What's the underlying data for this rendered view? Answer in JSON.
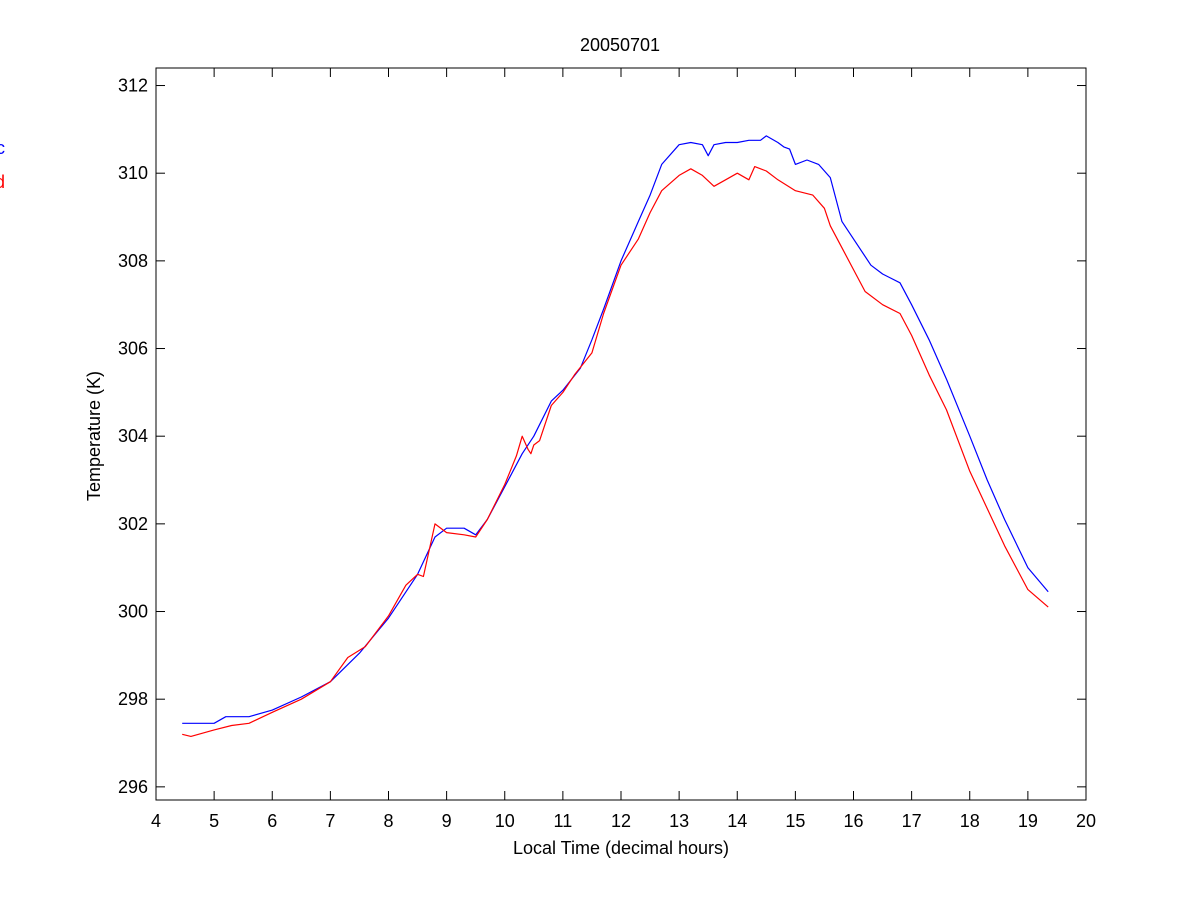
{
  "chart_data": {
    "type": "line",
    "title": "20050701",
    "xlabel": "Local Time (decimal hours)",
    "ylabel": "Temperature (K)",
    "xlim": [
      4,
      20
    ],
    "ylim": [
      295.7,
      312.4
    ],
    "xticks": [
      4,
      5,
      6,
      7,
      8,
      9,
      10,
      11,
      12,
      13,
      14,
      15,
      16,
      17,
      18,
      19,
      20
    ],
    "yticks": [
      296,
      298,
      300,
      302,
      304,
      306,
      308,
      310,
      312
    ],
    "grid": false,
    "legend_position": "left, outside axes (clipped)",
    "series": [
      {
        "name": "c",
        "color": "#0000ff",
        "x": [
          4.45,
          5.0,
          5.2,
          5.6,
          6.0,
          6.5,
          7.0,
          7.5,
          8.0,
          8.5,
          8.8,
          9.0,
          9.3,
          9.5,
          9.7,
          10.0,
          10.3,
          10.5,
          10.8,
          11.0,
          11.3,
          11.5,
          11.7,
          12.0,
          12.3,
          12.5,
          12.7,
          13.0,
          13.2,
          13.4,
          13.5,
          13.6,
          13.8,
          14.0,
          14.2,
          14.4,
          14.5,
          14.7,
          14.8,
          14.9,
          15.0,
          15.2,
          15.4,
          15.6,
          15.8,
          16.0,
          16.3,
          16.5,
          16.8,
          17.0,
          17.3,
          17.6,
          18.0,
          18.3,
          18.6,
          19.0,
          19.35
        ],
        "y": [
          297.45,
          297.45,
          297.6,
          297.6,
          297.75,
          298.05,
          298.4,
          299.05,
          299.85,
          300.85,
          301.7,
          301.9,
          301.9,
          301.75,
          302.1,
          302.85,
          303.6,
          304.0,
          304.8,
          305.05,
          305.55,
          306.2,
          306.9,
          308.0,
          308.9,
          309.5,
          310.2,
          310.65,
          310.7,
          310.65,
          310.4,
          310.65,
          310.7,
          310.7,
          310.75,
          310.75,
          310.85,
          310.7,
          310.6,
          310.55,
          310.2,
          310.3,
          310.2,
          309.9,
          308.9,
          308.5,
          307.9,
          307.7,
          307.5,
          307.0,
          306.2,
          305.3,
          304.0,
          303.0,
          302.1,
          301.0,
          300.45
        ]
      },
      {
        "name": "d",
        "color": "#ff0000",
        "x": [
          4.45,
          4.6,
          5.0,
          5.3,
          5.6,
          6.0,
          6.5,
          7.0,
          7.3,
          7.6,
          8.0,
          8.3,
          8.5,
          8.6,
          8.8,
          9.0,
          9.3,
          9.5,
          9.7,
          10.0,
          10.2,
          10.3,
          10.4,
          10.45,
          10.5,
          10.6,
          10.8,
          11.0,
          11.2,
          11.5,
          11.7,
          12.0,
          12.3,
          12.5,
          12.7,
          13.0,
          13.2,
          13.4,
          13.6,
          13.8,
          14.0,
          14.2,
          14.3,
          14.5,
          14.7,
          15.0,
          15.3,
          15.5,
          15.6,
          15.8,
          16.0,
          16.2,
          16.5,
          16.8,
          17.0,
          17.3,
          17.6,
          18.0,
          18.3,
          18.6,
          19.0,
          19.35
        ],
        "y": [
          297.2,
          297.15,
          297.3,
          297.4,
          297.45,
          297.7,
          298.0,
          298.4,
          298.95,
          299.2,
          299.9,
          300.6,
          300.85,
          300.8,
          302.0,
          301.8,
          301.75,
          301.7,
          302.1,
          302.9,
          303.55,
          304.0,
          303.7,
          303.6,
          303.8,
          303.9,
          304.7,
          305.0,
          305.4,
          305.9,
          306.8,
          307.9,
          308.5,
          309.1,
          309.6,
          309.95,
          310.1,
          309.95,
          309.7,
          309.85,
          310.0,
          309.85,
          310.15,
          310.05,
          309.85,
          309.6,
          309.5,
          309.2,
          308.8,
          308.3,
          307.8,
          307.3,
          307.0,
          306.8,
          306.3,
          305.4,
          304.6,
          303.2,
          302.35,
          301.5,
          300.5,
          300.1
        ]
      }
    ]
  }
}
